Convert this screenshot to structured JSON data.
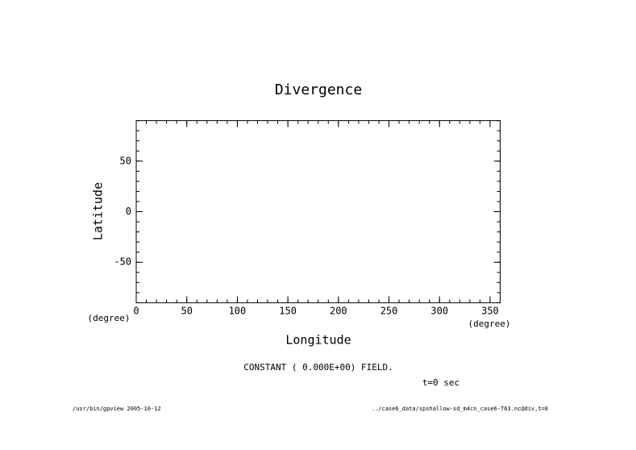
{
  "chart_data": {
    "type": "contour",
    "title": "Divergence",
    "x_label": "Longitude",
    "y_label": "Latitude",
    "x_unit": "(degree)",
    "y_unit": "(degree)",
    "xlim": [
      0,
      360
    ],
    "ylim": [
      -90,
      90
    ],
    "xticks": [
      0,
      50,
      100,
      150,
      200,
      250,
      300,
      350
    ],
    "yticks": [
      -50,
      0,
      50
    ],
    "annotation": "CONSTANT ( 0.000E+00) FIELD.",
    "time_label": "t=0 sec",
    "footer_left": "/usr/bin/gpview  2005-10-12",
    "footer_right": "../case6_data/spshallow-sd_m4cn_case6-T63.nc@div,t=0"
  }
}
